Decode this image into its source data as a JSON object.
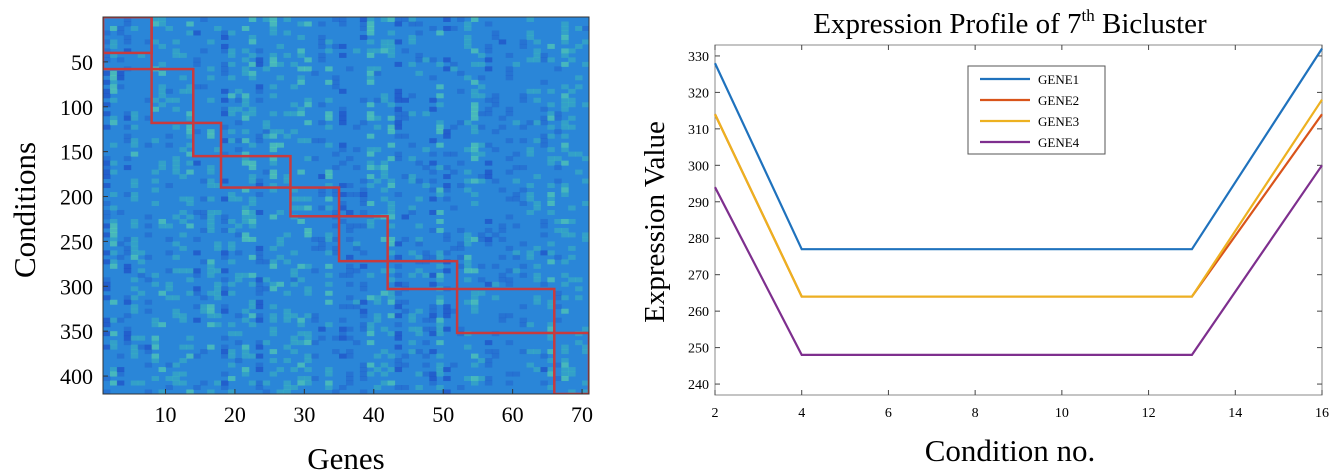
{
  "chart_data": [
    {
      "type": "heatmap",
      "xlabel": "Genes",
      "ylabel": "Conditions",
      "xlim": [
        1,
        71
      ],
      "ylim": [
        0,
        420
      ],
      "xticks": [
        10,
        20,
        30,
        40,
        50,
        60,
        70
      ],
      "yticks": [
        50,
        100,
        150,
        200,
        250,
        300,
        350,
        400
      ],
      "colormap": {
        "base": "#2a86d8",
        "dark": "#1f4fc8",
        "light": "#3fc0b8",
        "highlight": "#5ee0a8"
      },
      "bicluster_color": "#c83a3e",
      "biclusters": [
        {
          "genes": [
            1,
            8
          ],
          "conditions": [
            0,
            40
          ]
        },
        {
          "genes": [
            1,
            8
          ],
          "conditions": [
            0,
            58
          ]
        },
        {
          "genes": [
            8,
            14
          ],
          "conditions": [
            58,
            118
          ]
        },
        {
          "genes": [
            14,
            18
          ],
          "conditions": [
            118,
            155
          ]
        },
        {
          "genes": [
            18,
            28
          ],
          "conditions": [
            155,
            190
          ]
        },
        {
          "genes": [
            28,
            35
          ],
          "conditions": [
            190,
            222
          ]
        },
        {
          "genes": [
            35,
            42
          ],
          "conditions": [
            222,
            272
          ]
        },
        {
          "genes": [
            42,
            52
          ],
          "conditions": [
            272,
            303
          ]
        },
        {
          "genes": [
            52,
            66
          ],
          "conditions": [
            303,
            352
          ]
        },
        {
          "genes": [
            66,
            71
          ],
          "conditions": [
            352,
            420
          ]
        }
      ]
    },
    {
      "type": "line",
      "title": "Expression Profile of 7",
      "title_sup": "th",
      "title_end": " Bicluster",
      "xlabel": "Condition no.",
      "ylabel": "Expression Value",
      "xlim": [
        2,
        16
      ],
      "ylim": [
        237,
        333
      ],
      "xticks": [
        2,
        4,
        6,
        8,
        10,
        12,
        14,
        16
      ],
      "yticks": [
        240,
        250,
        260,
        270,
        280,
        290,
        300,
        310,
        320,
        330
      ],
      "legend": "top-center",
      "x": [
        2,
        4,
        13,
        16
      ],
      "series": [
        {
          "name": "GENE1",
          "color": "#1f72bd",
          "values": [
            328,
            277,
            277,
            332
          ]
        },
        {
          "name": "GENE2",
          "color": "#d9541a",
          "values": [
            314,
            264,
            264,
            314
          ]
        },
        {
          "name": "GENE3",
          "color": "#edb120",
          "values": [
            314,
            264,
            264,
            318
          ]
        },
        {
          "name": "GENE4",
          "color": "#7e2f8e",
          "values": [
            294,
            248,
            248,
            300
          ]
        }
      ]
    }
  ]
}
